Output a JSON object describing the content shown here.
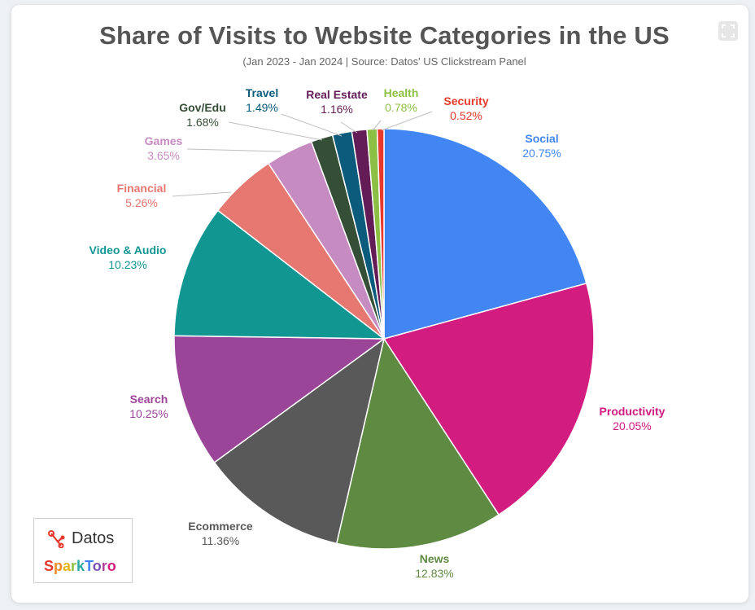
{
  "header": {
    "title": "Share of Visits to Website Categories in the US",
    "subtitle": "(Jan 2023 - Jan 2024 | Source: Datos' US Clickstream Panel"
  },
  "icons": {
    "expand": "fullscreen-expand-icon",
    "datos_logo": "datos-network-icon"
  },
  "logos": {
    "datos": "Datos",
    "sparktoro": "SparkToro"
  },
  "chart_data": {
    "type": "pie",
    "title": "Share of Visits to Website Categories in the US",
    "subtitle": "(Jan 2023 - Jan 2024 | Source: Datos' US Clickstream Panel",
    "start_angle": "12 o'clock",
    "direction": "clockwise",
    "slices": [
      {
        "label": "Social",
        "value": 20.75,
        "value_label": "20.75%",
        "color": "#4286f4"
      },
      {
        "label": "Productivity",
        "value": 20.05,
        "value_label": "20.05%",
        "color": "#d21c7f"
      },
      {
        "label": "News",
        "value": 12.83,
        "value_label": "12.83%",
        "color": "#5f8a42"
      },
      {
        "label": "Ecommerce",
        "value": 11.36,
        "value_label": "11.36%",
        "color": "#595959"
      },
      {
        "label": "Search",
        "value": 10.25,
        "value_label": "10.25%",
        "color": "#9a4598"
      },
      {
        "label": "Video & Audio",
        "value": 10.23,
        "value_label": "10.23%",
        "color": "#129692"
      },
      {
        "label": "Financial",
        "value": 5.26,
        "value_label": "5.26%",
        "color": "#e67871"
      },
      {
        "label": "Games",
        "value": 3.65,
        "value_label": "3.65%",
        "color": "#c68cc2"
      },
      {
        "label": "Gov/Edu",
        "value": 1.68,
        "value_label": "1.68%",
        "color": "#354e36"
      },
      {
        "label": "Travel",
        "value": 1.49,
        "value_label": "1.49%",
        "color": "#0b5c7c"
      },
      {
        "label": "Real Estate",
        "value": 1.16,
        "value_label": "1.16%",
        "color": "#641c57"
      },
      {
        "label": "Health",
        "value": 0.78,
        "value_label": "0.78%",
        "color": "#8cc045"
      },
      {
        "label": "Security",
        "value": 0.52,
        "value_label": "0.52%",
        "color": "#e8382c"
      }
    ]
  }
}
